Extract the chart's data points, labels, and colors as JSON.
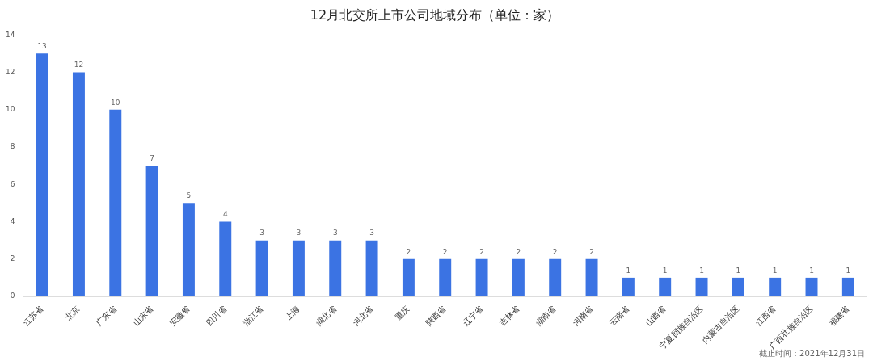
{
  "chart_data": {
    "type": "bar",
    "title": "12月北交所上市公司地域分布（单位：家）",
    "categories": [
      "江苏省",
      "北京",
      "广东省",
      "山东省",
      "安徽省",
      "四川省",
      "浙江省",
      "上海",
      "湖北省",
      "河北省",
      "重庆",
      "陕西省",
      "辽宁省",
      "吉林省",
      "湖南省",
      "河南省",
      "云南省",
      "山西省",
      "宁夏回族自治区",
      "内蒙古自治区",
      "江西省",
      "广西壮族自治区",
      "福建省"
    ],
    "values": [
      13,
      12,
      10,
      7,
      5,
      4,
      3,
      3,
      3,
      3,
      2,
      2,
      2,
      2,
      2,
      2,
      1,
      1,
      1,
      1,
      1,
      1,
      1
    ],
    "color": "#3b73e3",
    "ylim": [
      0,
      14
    ],
    "yticks": [
      0,
      2,
      4,
      6,
      8,
      10,
      12,
      14
    ],
    "data_labels": true,
    "annotations": [
      "截止时间：2021年12月31日"
    ]
  }
}
